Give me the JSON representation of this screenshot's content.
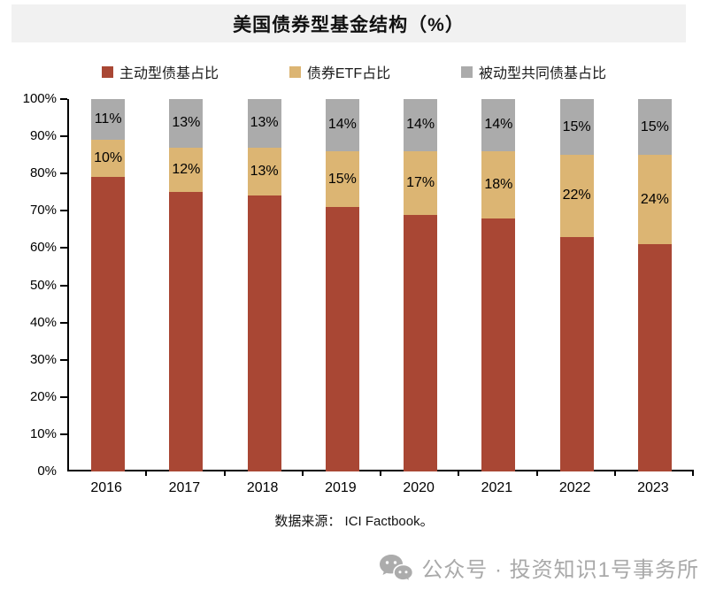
{
  "title": "美国债券型基金结构（%）",
  "legend": {
    "items": [
      {
        "label": "主动型债基占比",
        "color": "#A94734"
      },
      {
        "label": "债券ETF占比",
        "color": "#DCB573"
      },
      {
        "label": "被动型共同债基占比",
        "color": "#ABABAB"
      }
    ]
  },
  "chart_data": {
    "type": "bar",
    "stacked": true,
    "title": "美国债券型基金结构（%）",
    "categories": [
      "2016",
      "2017",
      "2018",
      "2019",
      "2020",
      "2021",
      "2022",
      "2023"
    ],
    "series": [
      {
        "name": "主动型债基占比",
        "color": "#A94734",
        "values": [
          79,
          75,
          74,
          71,
          69,
          68,
          63,
          61
        ],
        "show_labels": false
      },
      {
        "name": "债券ETF占比",
        "color": "#DCB573",
        "values": [
          10,
          12,
          13,
          15,
          17,
          18,
          22,
          24
        ],
        "show_labels": true
      },
      {
        "name": "被动型共同债基占比",
        "color": "#ABABAB",
        "values": [
          11,
          13,
          13,
          14,
          14,
          14,
          15,
          15
        ],
        "show_labels": true
      }
    ],
    "xlabel": "",
    "ylabel": "",
    "ylim": [
      0,
      100
    ],
    "yticks": [
      "0%",
      "10%",
      "20%",
      "30%",
      "40%",
      "50%",
      "60%",
      "70%",
      "80%",
      "90%",
      "100%"
    ],
    "label_format": "percent",
    "grid": false,
    "legend_position": "top"
  },
  "source_note": "数据来源：  ICI Factbook。",
  "footer": {
    "wechat_label": "公众号 · 投资知识1号事务所"
  }
}
